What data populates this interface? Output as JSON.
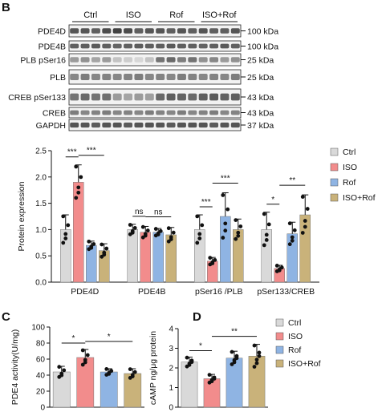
{
  "panel_labels": {
    "B": "B",
    "C": "C",
    "D": "D"
  },
  "blot": {
    "groups": [
      "Ctrl",
      "ISO",
      "Rof",
      "ISO+Rof"
    ],
    "bands": [
      {
        "label": "PDE4D",
        "size": "100 kDa"
      },
      {
        "label": "PDE4B",
        "size": "100 kDa"
      },
      {
        "label": "PLB pSer16",
        "size": "25 kDa"
      },
      {
        "label": "PLB",
        "size": "25 kDa"
      },
      {
        "label": "CREB pSer133",
        "size": "43 kDa"
      },
      {
        "label": "CREB",
        "size": "43 kDa"
      },
      {
        "label": "GAPDH",
        "size": "37 kDa"
      }
    ]
  },
  "colors": {
    "Ctrl": "#d9d9d9",
    "ISO": "#f28c8c",
    "Rof": "#8fb4e3",
    "ISO+Rof": "#c9b27a"
  },
  "chart_data": [
    {
      "type": "bar",
      "panel": "B",
      "categories": [
        "PDE4D",
        "PDE4B",
        "pSer16 /PLB",
        "pSer133/CREB"
      ],
      "ylabel": "Protein expression",
      "ylim": [
        0,
        2.5
      ],
      "yticks": [
        "0.0",
        "0.5",
        "1.0",
        "1.5",
        "2.0",
        "2.5"
      ],
      "legend": [
        "Ctrl",
        "ISO",
        "Rof",
        "ISO+Rof"
      ],
      "legend_position": "right",
      "series": [
        {
          "name": "Ctrl",
          "values": [
            1.0,
            1.0,
            1.0,
            1.0
          ],
          "err": [
            0.28,
            0.1,
            0.28,
            0.33
          ]
        },
        {
          "name": "ISO",
          "values": [
            1.9,
            0.95,
            0.4,
            0.26
          ],
          "err": [
            0.33,
            0.11,
            0.07,
            0.06
          ]
        },
        {
          "name": "Rof",
          "values": [
            0.7,
            0.95,
            1.25,
            0.92
          ],
          "err": [
            0.08,
            0.07,
            0.45,
            0.22
          ]
        },
        {
          "name": "ISO+Rof",
          "values": [
            0.6,
            0.9,
            1.0,
            1.28
          ],
          "err": [
            0.13,
            0.14,
            0.2,
            0.38
          ]
        }
      ],
      "annotations": [
        {
          "category": "PDE4D",
          "pair": [
            "Ctrl",
            "ISO"
          ],
          "text": "***"
        },
        {
          "category": "PDE4D",
          "pair": [
            "ISO",
            "ISO+Rof"
          ],
          "text": "***"
        },
        {
          "category": "PDE4B",
          "pair": [
            "Ctrl",
            "ISO"
          ],
          "text": "ns"
        },
        {
          "category": "PDE4B",
          "pair": [
            "ISO",
            "ISO+Rof"
          ],
          "text": "ns"
        },
        {
          "category": "pSer16 /PLB",
          "pair": [
            "Ctrl",
            "ISO"
          ],
          "text": "***"
        },
        {
          "category": "pSer16 /PLB",
          "pair": [
            "ISO",
            "ISO+Rof"
          ],
          "text": "***"
        },
        {
          "category": "pSer133/CREB",
          "pair": [
            "Ctrl",
            "ISO"
          ],
          "text": "*"
        },
        {
          "category": "pSer133/CREB",
          "pair": [
            "ISO",
            "ISO+Rof"
          ],
          "text": "**"
        }
      ]
    },
    {
      "type": "bar",
      "panel": "C",
      "categories": [
        "Ctrl",
        "ISO",
        "Rof",
        "ISO+Rof"
      ],
      "ylabel": "PDE4 activity(U/mg)",
      "ylim": [
        0,
        100
      ],
      "yticks": [
        "0",
        "20",
        "40",
        "60",
        "80",
        "100"
      ],
      "values": [
        44,
        62,
        44,
        42
      ],
      "err": [
        7,
        10,
        4,
        6
      ],
      "annotations": [
        {
          "pair": [
            "Ctrl",
            "ISO"
          ],
          "text": "*"
        },
        {
          "pair": [
            "ISO",
            "ISO+Rof"
          ],
          "text": "*"
        }
      ]
    },
    {
      "type": "bar",
      "panel": "D",
      "categories": [
        "Ctrl",
        "ISO",
        "Rof",
        "ISO+Rof"
      ],
      "ylabel": "cAMP ng/μg protein",
      "ylim": [
        0,
        4
      ],
      "yticks": [
        "0",
        "1",
        "2",
        "3",
        "4"
      ],
      "values": [
        2.3,
        1.45,
        2.5,
        2.6
      ],
      "err": [
        0.25,
        0.22,
        0.35,
        0.6
      ],
      "legend": [
        "Ctrl",
        "ISO",
        "Rof",
        "ISO+Rof"
      ],
      "legend_position": "right",
      "annotations": [
        {
          "pair": [
            "Ctrl",
            "ISO"
          ],
          "text": "*"
        },
        {
          "pair": [
            "ISO",
            "ISO+Rof"
          ],
          "text": "**"
        }
      ]
    }
  ]
}
